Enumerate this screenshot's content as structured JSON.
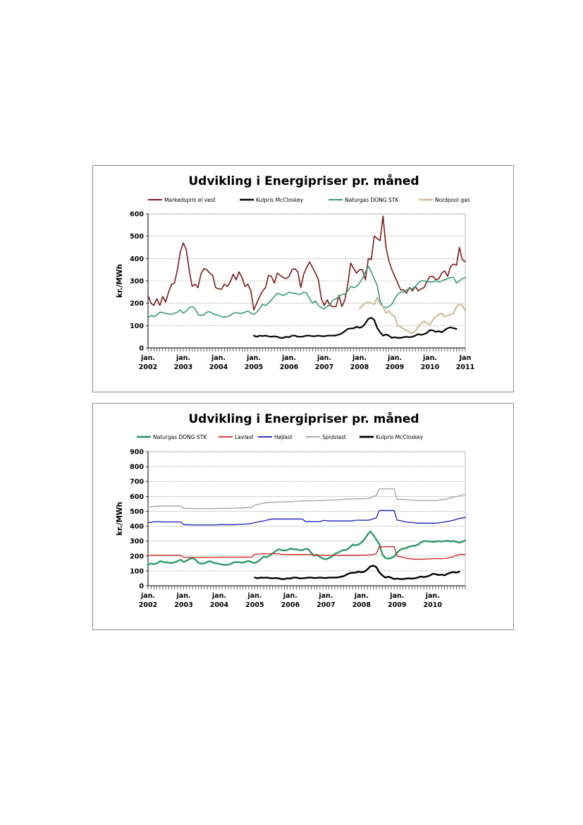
{
  "chart_data": [
    {
      "type": "line",
      "title": "Udvikling i Energipriser pr. måned",
      "ylabel": "kr./MWh",
      "xlabel": "",
      "ylim": [
        0,
        600
      ],
      "yticks": [
        0,
        100,
        200,
        300,
        400,
        500,
        600
      ],
      "x_tick_labels": [
        [
          "jan.",
          "2002"
        ],
        [
          "jan.",
          "2003"
        ],
        [
          "jan.",
          "2004"
        ],
        [
          "jan.",
          "2005"
        ],
        [
          "jan.",
          "2006"
        ],
        [
          "jan.",
          "2007"
        ],
        [
          "jan.",
          "2008"
        ],
        [
          "jan.",
          "2009"
        ],
        [
          "jan.",
          "2010"
        ],
        [
          "Jan",
          "2011"
        ]
      ],
      "x_start": "2002-01",
      "months": 109,
      "grid": true,
      "legend_position": "top",
      "series": [
        {
          "name": "Markedspris el vest",
          "color": "#7b1a1a",
          "width": 1.6,
          "start": "2002-01",
          "values": [
            235,
            200,
            190,
            220,
            190,
            230,
            205,
            250,
            285,
            290,
            350,
            430,
            470,
            440,
            350,
            275,
            285,
            270,
            330,
            355,
            350,
            335,
            325,
            270,
            265,
            262,
            285,
            275,
            295,
            330,
            305,
            340,
            315,
            275,
            285,
            255,
            170,
            200,
            230,
            255,
            270,
            325,
            320,
            290,
            335,
            325,
            315,
            310,
            320,
            350,
            355,
            340,
            270,
            330,
            360,
            385,
            360,
            335,
            305,
            220,
            190,
            215,
            190,
            185,
            185,
            235,
            185,
            215,
            285,
            380,
            355,
            335,
            350,
            350,
            305,
            400,
            395,
            500,
            490,
            480,
            590,
            450,
            390,
            350,
            320,
            290,
            260,
            260,
            245,
            270,
            255,
            275,
            255,
            265,
            270,
            300,
            320,
            320,
            305,
            310,
            335,
            345,
            320,
            365,
            375,
            370,
            450,
            395,
            385
          ]
        },
        {
          "name": "Kulpris McCloskey",
          "color": "#000000",
          "width": 2.2,
          "start": "2005-01",
          "values": [
            55,
            50,
            55,
            53,
            55,
            52,
            50,
            52,
            50,
            45,
            45,
            50,
            48,
            55,
            55,
            50,
            50,
            52,
            55,
            55,
            52,
            53,
            55,
            53,
            52,
            55,
            55,
            55,
            56,
            60,
            65,
            75,
            85,
            87,
            88,
            95,
            90,
            95,
            110,
            130,
            135,
            125,
            90,
            70,
            55,
            60,
            55,
            45,
            48,
            45,
            45,
            48,
            50,
            48,
            50,
            55,
            62,
            58,
            62,
            68,
            80,
            78,
            72,
            75,
            70,
            80,
            88,
            92,
            88,
            85
          ]
        },
        {
          "name": "Naturgas DONG STK",
          "color": "#3a9a78",
          "width": 1.6,
          "start": "2002-01",
          "values": [
            135,
            145,
            140,
            148,
            160,
            158,
            155,
            152,
            150,
            155,
            160,
            170,
            155,
            165,
            180,
            185,
            175,
            150,
            145,
            148,
            160,
            162,
            155,
            148,
            147,
            140,
            138,
            140,
            145,
            155,
            158,
            155,
            155,
            160,
            165,
            155,
            150,
            160,
            175,
            195,
            190,
            200,
            215,
            230,
            245,
            240,
            235,
            240,
            250,
            245,
            245,
            240,
            240,
            250,
            245,
            220,
            200,
            210,
            190,
            180,
            175,
            185,
            195,
            215,
            220,
            230,
            240,
            240,
            255,
            275,
            270,
            275,
            290,
            310,
            340,
            365,
            340,
            310,
            280,
            210,
            185,
            180,
            185,
            195,
            220,
            240,
            250,
            250,
            260,
            265,
            265,
            275,
            290,
            300,
            300,
            295,
            295,
            295,
            300,
            295,
            300,
            305,
            310,
            315,
            315,
            290,
            300,
            310,
            315
          ]
        },
        {
          "name": "Nordpool gas",
          "color": "#cdbf9a",
          "width": 2.2,
          "start": "2008-01",
          "values": [
            175,
            190,
            200,
            205,
            200,
            195,
            225,
            195,
            185,
            155,
            165,
            150,
            140,
            100,
            95,
            85,
            80,
            70,
            65,
            75,
            95,
            110,
            120,
            110,
            105,
            125,
            140,
            150,
            155,
            140,
            145,
            150,
            155,
            185,
            195,
            190,
            165
          ]
        }
      ]
    },
    {
      "type": "line",
      "title": "Udvikling i Energipriser pr. måned",
      "ylabel": "kr./MWh",
      "xlabel": "",
      "ylim": [
        0,
        900
      ],
      "yticks": [
        0,
        100,
        200,
        300,
        400,
        500,
        600,
        700,
        800,
        900
      ],
      "x_tick_labels": [
        [
          "jan.",
          "2002"
        ],
        [
          "jan.",
          "2003"
        ],
        [
          "jan.",
          "2004"
        ],
        [
          "jan.",
          "2005"
        ],
        [
          "jan.",
          "2006"
        ],
        [
          "jan.",
          "2007"
        ],
        [
          "jan.",
          "2008"
        ],
        [
          "jan.",
          "2009"
        ],
        [
          "jan.",
          "2010"
        ]
      ],
      "x_start": "2002-01",
      "months": 108,
      "grid": true,
      "legend_position": "top",
      "series": [
        {
          "name": "Naturgas DONG STK",
          "color": "#2e9a6a",
          "width": 2.4,
          "start": "2002-01",
          "values": [
            140,
            150,
            145,
            150,
            165,
            160,
            158,
            155,
            152,
            158,
            165,
            175,
            160,
            168,
            180,
            185,
            175,
            155,
            148,
            150,
            160,
            165,
            155,
            150,
            148,
            142,
            140,
            142,
            148,
            158,
            160,
            157,
            155,
            162,
            166,
            158,
            152,
            162,
            178,
            195,
            192,
            202,
            218,
            232,
            245,
            240,
            236,
            240,
            250,
            245,
            244,
            240,
            238,
            248,
            245,
            222,
            202,
            210,
            192,
            182,
            178,
            185,
            196,
            215,
            222,
            232,
            240,
            242,
            256,
            276,
            272,
            276,
            290,
            312,
            342,
            365,
            340,
            310,
            280,
            212,
            186,
            182,
            186,
            196,
            222,
            240,
            250,
            252,
            262,
            266,
            268,
            276,
            290,
            300,
            300,
            296,
            296,
            296,
            300,
            296,
            300,
            302,
            298,
            300,
            295,
            290,
            295,
            305
          ]
        },
        {
          "name": "Lavlast",
          "color": "#d42020",
          "width": 1.3,
          "start": "2002-01",
          "values": [
            205,
            205,
            205,
            205,
            205,
            205,
            205,
            205,
            205,
            205,
            205,
            205,
            190,
            190,
            190,
            190,
            190,
            190,
            190,
            190,
            190,
            190,
            190,
            190,
            192,
            192,
            192,
            192,
            192,
            192,
            192,
            192,
            192,
            192,
            192,
            192,
            212,
            212,
            215,
            215,
            215,
            215,
            215,
            215,
            215,
            210,
            210,
            210,
            210,
            210,
            210,
            210,
            210,
            210,
            210,
            210,
            205,
            205,
            205,
            205,
            205,
            205,
            205,
            205,
            205,
            205,
            205,
            205,
            205,
            205,
            205,
            205,
            206,
            206,
            206,
            208,
            210,
            215,
            262,
            262,
            262,
            262,
            262,
            262,
            198,
            195,
            190,
            185,
            182,
            180,
            178,
            178,
            178,
            178,
            180,
            180,
            182,
            182,
            182,
            182,
            183,
            185,
            190,
            195,
            205,
            210,
            210,
            210
          ]
        },
        {
          "name": "Højlast",
          "color": "#1a1ab8",
          "width": 1.3,
          "start": "2002-01",
          "values": [
            425,
            425,
            430,
            430,
            430,
            428,
            428,
            428,
            428,
            428,
            428,
            428,
            410,
            410,
            410,
            408,
            408,
            408,
            408,
            408,
            408,
            408,
            408,
            408,
            410,
            410,
            410,
            410,
            410,
            410,
            412,
            412,
            412,
            415,
            415,
            418,
            425,
            428,
            432,
            436,
            440,
            445,
            448,
            448,
            448,
            448,
            448,
            448,
            448,
            448,
            448,
            448,
            448,
            432,
            432,
            430,
            430,
            430,
            430,
            438,
            438,
            435,
            435,
            435,
            435,
            435,
            435,
            435,
            435,
            435,
            440,
            440,
            440,
            440,
            440,
            442,
            450,
            455,
            505,
            505,
            505,
            505,
            505,
            505,
            440,
            438,
            432,
            428,
            425,
            425,
            422,
            420,
            420,
            420,
            420,
            420,
            420,
            420,
            422,
            425,
            428,
            432,
            435,
            440,
            445,
            452,
            455,
            458
          ]
        },
        {
          "name": "Spidslast",
          "color": "#a0a0a0",
          "width": 1.3,
          "start": "2002-01",
          "values": [
            530,
            530,
            532,
            535,
            535,
            535,
            535,
            535,
            535,
            535,
            535,
            535,
            520,
            520,
            520,
            518,
            518,
            518,
            518,
            518,
            518,
            518,
            518,
            518,
            520,
            520,
            520,
            520,
            520,
            520,
            522,
            522,
            522,
            525,
            525,
            528,
            540,
            545,
            550,
            555,
            558,
            560,
            560,
            562,
            562,
            562,
            564,
            564,
            565,
            565,
            568,
            568,
            570,
            570,
            570,
            570,
            570,
            572,
            572,
            572,
            575,
            575,
            575,
            575,
            578,
            578,
            580,
            582,
            582,
            582,
            584,
            584,
            584,
            585,
            585,
            588,
            600,
            605,
            650,
            650,
            650,
            650,
            650,
            650,
            580,
            580,
            580,
            578,
            576,
            575,
            573,
            572,
            572,
            572,
            572,
            572,
            572,
            572,
            575,
            578,
            580,
            585,
            590,
            595,
            598,
            603,
            610,
            612
          ]
        },
        {
          "name": "Kulpris McCloskey",
          "color": "#000000",
          "width": 2.4,
          "start": "2005-01",
          "values": [
            55,
            50,
            55,
            53,
            55,
            52,
            50,
            52,
            50,
            45,
            45,
            50,
            48,
            55,
            55,
            50,
            50,
            52,
            55,
            55,
            52,
            53,
            55,
            53,
            52,
            55,
            55,
            55,
            56,
            60,
            65,
            75,
            85,
            87,
            88,
            95,
            90,
            95,
            110,
            130,
            135,
            125,
            90,
            70,
            55,
            60,
            55,
            45,
            48,
            45,
            45,
            48,
            50,
            48,
            50,
            55,
            62,
            58,
            62,
            68,
            80,
            78,
            72,
            75,
            70,
            80,
            88,
            92,
            88,
            95
          ]
        }
      ]
    }
  ]
}
